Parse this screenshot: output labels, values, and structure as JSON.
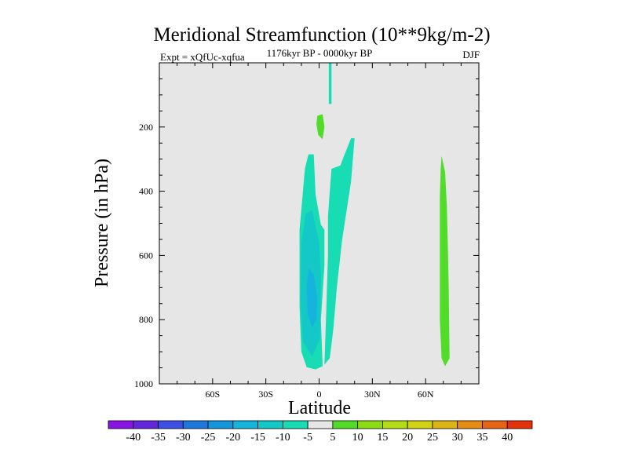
{
  "chart_data": {
    "type": "heatmap",
    "title": "Meridional Streamfunction (10**9kg/m-2)",
    "subtitle_left": "Expt = xQfUc-xqfua",
    "subtitle_center": "1176kyr BP - 0000kyr BP",
    "subtitle_right": "DJF",
    "xlabel": "Latitude",
    "ylabel": "Pressure (in hPa)",
    "xlim": [
      -90,
      90
    ],
    "ylim": [
      0,
      1000
    ],
    "y_inverted": true,
    "x_ticks": [
      {
        "value": -60,
        "label": "60S"
      },
      {
        "value": -30,
        "label": "30S"
      },
      {
        "value": 0,
        "label": "0"
      },
      {
        "value": 30,
        "label": "30N"
      },
      {
        "value": 60,
        "label": "60N"
      }
    ],
    "y_ticks": [
      {
        "value": 200,
        "label": "200"
      },
      {
        "value": 400,
        "label": "400"
      },
      {
        "value": 600,
        "label": "600"
      },
      {
        "value": 800,
        "label": "800"
      },
      {
        "value": 1000,
        "label": "1000"
      }
    ],
    "colorbar": {
      "labels": [
        "-40",
        "-35",
        "-30",
        "-25",
        "-20",
        "-15",
        "-10",
        "-5",
        "5",
        "10",
        "15",
        "20",
        "25",
        "30",
        "35",
        "40"
      ],
      "colors": [
        "#8a14e6",
        "#6428dc",
        "#3c50e6",
        "#1e78dc",
        "#1496dc",
        "#14b4dc",
        "#14c8c8",
        "#18dcb4",
        "#e6e6e6",
        "#50dc28",
        "#8cdc14",
        "#b4dc14",
        "#d2d214",
        "#dcb414",
        "#e68c14",
        "#e66414",
        "#e6320a"
      ]
    },
    "background_color": "#e6e6e6",
    "regions": [
      {
        "name": "thin-upper-column",
        "level": -5,
        "color": "#18dcb4",
        "points": [
          [
            5.5,
            0
          ],
          [
            7,
            0
          ],
          [
            7,
            128
          ],
          [
            5.5,
            128
          ]
        ]
      },
      {
        "name": "upper-positive-blob",
        "level": 5,
        "color": "#50dc28",
        "points": [
          [
            -1,
            165
          ],
          [
            2,
            160
          ],
          [
            3,
            200
          ],
          [
            2,
            238
          ],
          [
            -0.5,
            225
          ],
          [
            -1.5,
            190
          ]
        ]
      },
      {
        "name": "southern-negative-cell-outer",
        "level": -5,
        "color": "#18dcb4",
        "points": [
          [
            -6,
            285
          ],
          [
            -3,
            285
          ],
          [
            -2,
            410
          ],
          [
            1,
            505
          ],
          [
            3,
            520
          ],
          [
            3,
            630
          ],
          [
            1,
            800
          ],
          [
            2,
            945
          ],
          [
            -2,
            955
          ],
          [
            -7,
            948
          ],
          [
            -10,
            900
          ],
          [
            -11,
            760
          ],
          [
            -11,
            520
          ],
          [
            -8,
            330
          ]
        ]
      },
      {
        "name": "southern-negative-cell-mid",
        "level": -10,
        "color": "#14c8c8",
        "points": [
          [
            -7.5,
            470
          ],
          [
            -4,
            460
          ],
          [
            0,
            560
          ],
          [
            1,
            660
          ],
          [
            0.5,
            860
          ],
          [
            -4,
            915
          ],
          [
            -9,
            870
          ],
          [
            -10.5,
            740
          ],
          [
            -10,
            560
          ]
        ]
      },
      {
        "name": "southern-negative-cell-core",
        "level": -15,
        "color": "#14b4dc",
        "points": [
          [
            -6,
            640
          ],
          [
            -3,
            660
          ],
          [
            -1,
            735
          ],
          [
            -1.5,
            800
          ],
          [
            -4,
            825
          ],
          [
            -6.5,
            780
          ],
          [
            -7,
            700
          ]
        ]
      },
      {
        "name": "northern-negative-band",
        "level": -5,
        "color": "#18dcb4",
        "points": [
          [
            18,
            235
          ],
          [
            20,
            235
          ],
          [
            18,
            370
          ],
          [
            13,
            550
          ],
          [
            10,
            700
          ],
          [
            8,
            830
          ],
          [
            6,
            920
          ],
          [
            3,
            940
          ],
          [
            4,
            780
          ],
          [
            5,
            600
          ],
          [
            5,
            480
          ],
          [
            6,
            400
          ],
          [
            7,
            330
          ],
          [
            12,
            320
          ],
          [
            14,
            290
          ]
        ]
      },
      {
        "name": "northern-positive-column",
        "level": 5,
        "color": "#50dc28",
        "points": [
          [
            69,
            290
          ],
          [
            71,
            340
          ],
          [
            72,
            450
          ],
          [
            72.5,
            560
          ],
          [
            73,
            700
          ],
          [
            73.5,
            920
          ],
          [
            71,
            945
          ],
          [
            69,
            920
          ],
          [
            68,
            800
          ],
          [
            68,
            600
          ],
          [
            68,
            420
          ],
          [
            68.5,
            330
          ]
        ]
      }
    ]
  }
}
